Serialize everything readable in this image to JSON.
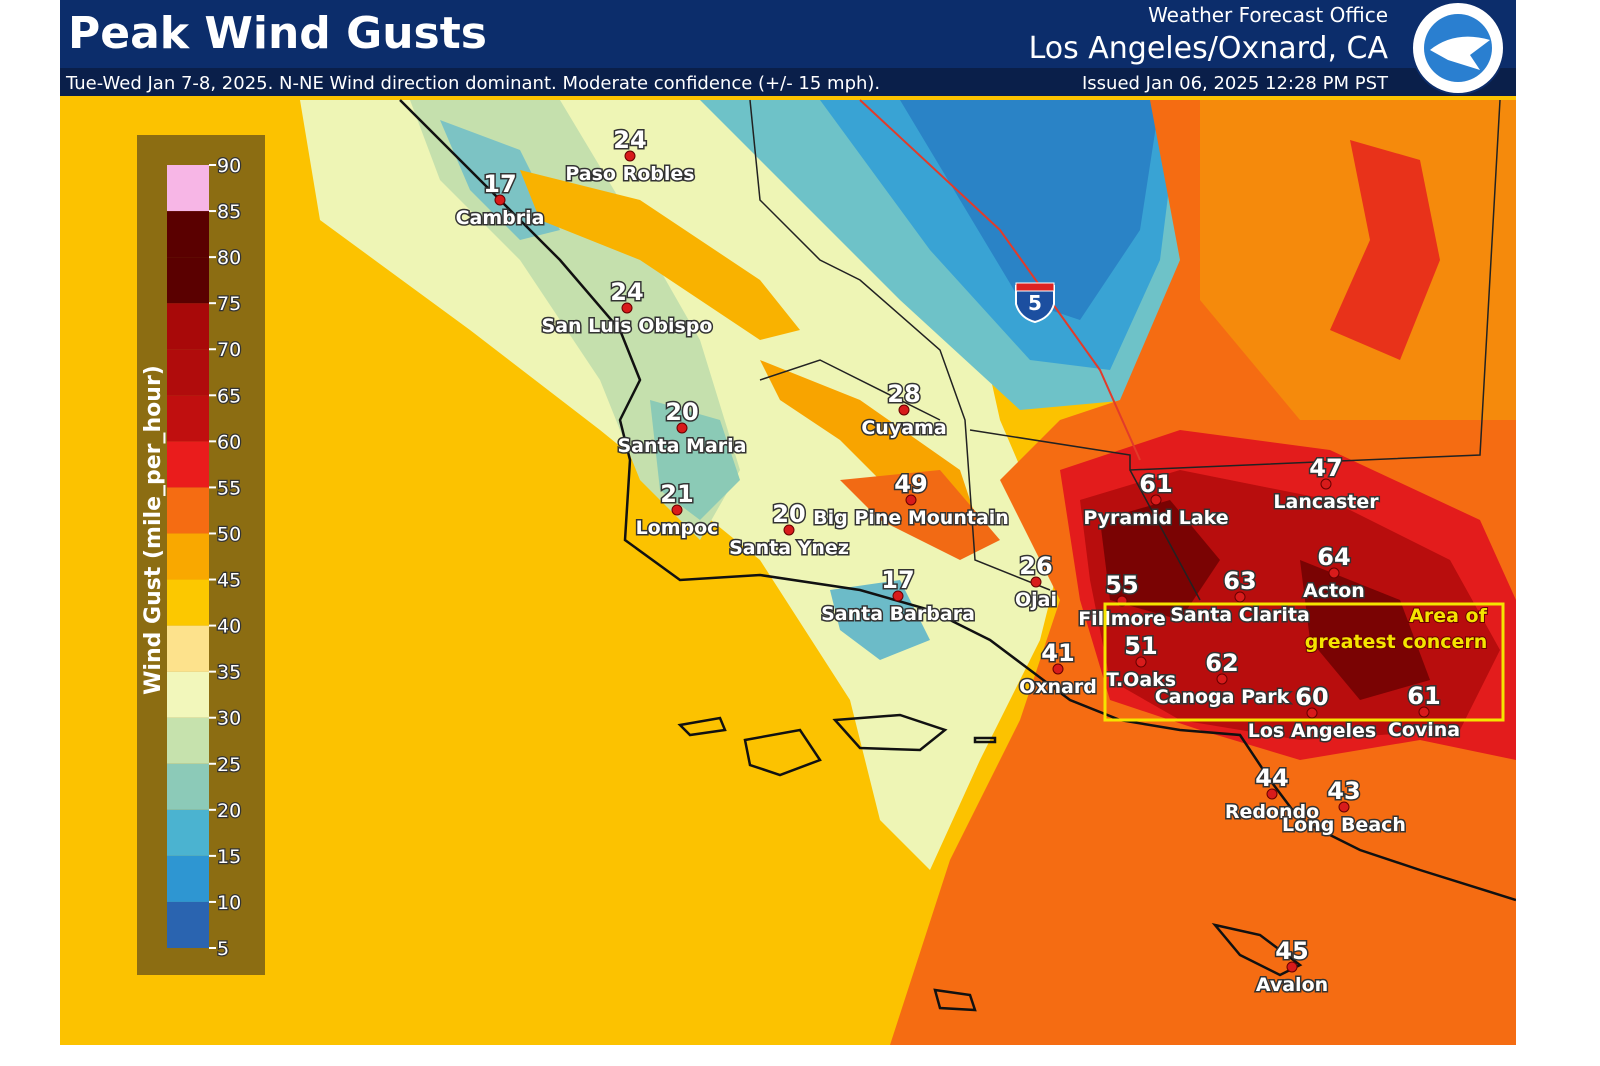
{
  "header": {
    "title": "Peak Wind Gusts",
    "subtitle": "Tue-Wed Jan 7-8, 2025.  N-NE Wind direction dominant.  Moderate confidence (+/- 15 mph).",
    "office": "Weather Forecast Office",
    "location": "Los Angeles/Oxnard, CA",
    "issued": "Issued Jan 06, 2025 12:28 PM PST"
  },
  "legend": {
    "title": "Wind Gust (mile_per_hour)",
    "ticks": [
      5,
      10,
      15,
      20,
      25,
      30,
      35,
      40,
      45,
      50,
      55,
      60,
      65,
      70,
      75,
      80,
      85,
      90
    ],
    "colors": [
      "#2a64b0",
      "#2e96d2",
      "#4bb3d0",
      "#8ccab8",
      "#c6e2ad",
      "#f2f7bb",
      "#fde28c",
      "#fcc800",
      "#f9a800",
      "#f56c12",
      "#ea1c1c",
      "#c00f0f",
      "#b00c0c",
      "#a80909",
      "#5a0000",
      "#5a0000",
      "#f7b6e6"
    ]
  },
  "stations": [
    {
      "name": "Paso Robles",
      "gust": 24
    },
    {
      "name": "Cambria",
      "gust": 17
    },
    {
      "name": "San Luis Obispo",
      "gust": 24
    },
    {
      "name": "Santa Maria",
      "gust": 20
    },
    {
      "name": "Lompoc",
      "gust": 21
    },
    {
      "name": "Santa Ynez",
      "gust": 20
    },
    {
      "name": "Cuyama",
      "gust": 28
    },
    {
      "name": "Big Pine Mountain",
      "gust": 49
    },
    {
      "name": "Santa Barbara",
      "gust": 17
    },
    {
      "name": "Ojai",
      "gust": 26
    },
    {
      "name": "Oxnard",
      "gust": 41
    },
    {
      "name": "Pyramid Lake",
      "gust": 61
    },
    {
      "name": "Lancaster",
      "gust": 47
    },
    {
      "name": "Acton",
      "gust": 64
    },
    {
      "name": "Santa Clarita",
      "gust": 63
    },
    {
      "name": "Fillmore",
      "gust": 55
    },
    {
      "name": "T.Oaks",
      "gust": 51
    },
    {
      "name": "Canoga Park",
      "gust": 62
    },
    {
      "name": "Los Angeles",
      "gust": 60
    },
    {
      "name": "Covina",
      "gust": 61
    },
    {
      "name": "Redondo",
      "gust": 44
    },
    {
      "name": "Long Beach",
      "gust": 43
    },
    {
      "name": "Avalon",
      "gust": 45
    }
  ],
  "annotation": [
    "Area of",
    "greatest concern"
  ],
  "highway": "5"
}
